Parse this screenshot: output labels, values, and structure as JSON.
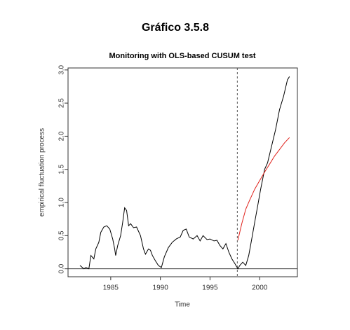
{
  "page_title": "Gráfico 3.5.8",
  "chart_data": {
    "type": "line",
    "title": "Monitoring with OLS-based CUSUM test",
    "xlabel": "Time",
    "ylabel": "empirical fluctuation process",
    "xlim": [
      1980.7,
      2003.8
    ],
    "ylim": [
      -0.12,
      3.03
    ],
    "xticks": [
      1985,
      1990,
      1995,
      2000
    ],
    "yticks": [
      {
        "value": 0,
        "label": "0.0"
      },
      0.5,
      {
        "value": 1,
        "label": "1.0"
      },
      1.5,
      {
        "value": 2,
        "label": "2.0"
      },
      2.5,
      {
        "value": 3,
        "label": "3.0"
      }
    ],
    "hline": 0,
    "vline": 1997.75,
    "series": [
      {
        "color": "#000000",
        "x": [
          1981.9,
          1982.3,
          1982.5,
          1982.8,
          1983,
          1983.3,
          1983.5,
          1983.8,
          1984,
          1984.3,
          1984.6,
          1984.9,
          1985.2,
          1985.4,
          1985.5,
          1985.7,
          1986,
          1986.2,
          1986.4,
          1986.6,
          1986.8,
          1987,
          1987.3,
          1987.6,
          1988,
          1988.3,
          1988.5,
          1988.8,
          1989,
          1989.2,
          1989.5,
          1989.8,
          1990.1,
          1990.4,
          1990.8,
          1991.2,
          1991.6,
          1992,
          1992.3,
          1992.6,
          1992.9,
          1993.3,
          1993.7,
          1994,
          1994.3,
          1994.7,
          1995,
          1995.4,
          1995.7,
          1996,
          1996.3,
          1996.6,
          1996.9,
          1997.2,
          1997.5,
          1997.8,
          1998,
          1998.3,
          1998.6,
          1998.9,
          1999.2,
          1999.5,
          1999.8,
          2000.1,
          2000.5,
          2000.8,
          2001.2,
          2001.6,
          2002,
          2002.4,
          2002.8,
          2003
        ],
        "values": [
          0.05,
          0,
          0.02,
          0,
          0.2,
          0.15,
          0.3,
          0.4,
          0.55,
          0.63,
          0.65,
          0.6,
          0.45,
          0.3,
          0.2,
          0.35,
          0.5,
          0.7,
          0.92,
          0.88,
          0.65,
          0.68,
          0.62,
          0.63,
          0.5,
          0.3,
          0.22,
          0.3,
          0.28,
          0.2,
          0.12,
          0.05,
          0.02,
          0.18,
          0.32,
          0.4,
          0.45,
          0.48,
          0.58,
          0.6,
          0.48,
          0.45,
          0.5,
          0.42,
          0.5,
          0.44,
          0.45,
          0.42,
          0.43,
          0.35,
          0.3,
          0.38,
          0.25,
          0.15,
          0.08,
          0,
          0.05,
          0.1,
          0.05,
          0.2,
          0.45,
          0.7,
          0.95,
          1.2,
          1.5,
          1.6,
          1.85,
          2.1,
          2.4,
          2.6,
          2.85,
          2.9
        ]
      },
      {
        "color": "#e0201a",
        "x": [
          1997.8,
          1998.2,
          1998.6,
          1999,
          1999.5,
          2000,
          2000.5,
          2001,
          2001.5,
          2002,
          2002.5,
          2003
        ],
        "values": [
          0.43,
          0.68,
          0.9,
          1.04,
          1.2,
          1.33,
          1.46,
          1.58,
          1.7,
          1.8,
          1.9,
          1.98
        ]
      }
    ]
  }
}
